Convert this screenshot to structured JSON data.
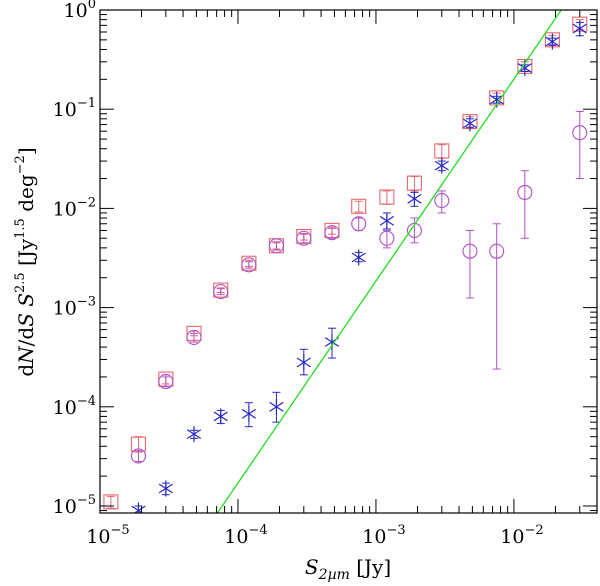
{
  "chart_data": {
    "type": "scatter",
    "title": "",
    "xlabel": "S_2µm [Jy]",
    "ylabel": "dN/dS S^2.5 [Jy^1.5 deg^-2]",
    "xscale": "log",
    "yscale": "log",
    "xlim": [
      1e-05,
      0.04
    ],
    "ylim": [
      8.5e-06,
      1.0
    ],
    "x_tick_labels": [
      "10^-5",
      "10^-4",
      "10^-3",
      "10^-2"
    ],
    "y_tick_labels": [
      "10^-5",
      "10^-4",
      "10^-3",
      "10^-2",
      "10^-1",
      "10^0"
    ],
    "colors": {
      "squares": "#e8686e",
      "circles": "#b050c8",
      "stars": "#2828c8",
      "model": "#22dd22"
    },
    "series": [
      {
        "name": "squares",
        "marker": "square",
        "x": [
          1.2e-05,
          1.9e-05,
          3e-05,
          4.8e-05,
          7.5e-05,
          0.00012,
          0.00019,
          0.0003,
          0.00048,
          0.00075,
          0.0012,
          0.0019,
          0.003,
          0.0048,
          0.0075,
          0.012,
          0.019,
          0.03
        ],
        "y": [
          1.1e-05,
          4.2e-05,
          0.00019,
          0.00055,
          0.0015,
          0.0028,
          0.0042,
          0.0052,
          0.006,
          0.0105,
          0.013,
          0.018,
          0.038,
          0.075,
          0.13,
          0.27,
          0.5,
          0.72
        ],
        "err_low": [
          9.5e-06,
          3.5e-05,
          0.00017,
          0.00052,
          0.00142,
          0.0026,
          0.0039,
          0.0048,
          0.0055,
          0.0092,
          0.011,
          0.015,
          0.032,
          0.066,
          0.115,
          0.24,
          0.45,
          0.64
        ],
        "err_high": [
          1.25e-05,
          5e-05,
          0.00021,
          0.00058,
          0.00158,
          0.003,
          0.0045,
          0.0056,
          0.0065,
          0.0118,
          0.015,
          0.021,
          0.044,
          0.084,
          0.145,
          0.3,
          0.55,
          0.8
        ]
      },
      {
        "name": "circles",
        "marker": "circle",
        "x": [
          1.9e-05,
          3e-05,
          4.8e-05,
          7.5e-05,
          0.00012,
          0.00019,
          0.0003,
          0.00048,
          0.00075,
          0.0012,
          0.0019,
          0.003,
          0.0048,
          0.0075,
          0.012,
          0.03
        ],
        "y": [
          3.2e-05,
          0.00018,
          0.0005,
          0.00145,
          0.0027,
          0.0042,
          0.005,
          0.0057,
          0.007,
          0.005,
          0.006,
          0.012,
          0.0037,
          0.0037,
          0.0145,
          0.058
        ],
        "err_low": [
          2.8e-05,
          0.00016,
          0.00045,
          0.00135,
          0.0025,
          0.0038,
          0.0045,
          0.005,
          0.006,
          0.004,
          0.0045,
          0.009,
          0.00125,
          0.00024,
          0.005,
          0.02
        ],
        "err_high": [
          3.6e-05,
          0.0002,
          0.00055,
          0.00155,
          0.0029,
          0.0046,
          0.0055,
          0.0063,
          0.008,
          0.006,
          0.008,
          0.015,
          0.006,
          0.007,
          0.024,
          0.095
        ]
      },
      {
        "name": "stars",
        "marker": "asterisk",
        "x": [
          1.9e-05,
          3e-05,
          4.8e-05,
          7.5e-05,
          0.00012,
          0.00019,
          0.0003,
          0.00048,
          0.00075,
          0.0012,
          0.0019,
          0.003,
          0.0048,
          0.0075,
          0.012,
          0.019,
          0.03
        ],
        "y": [
          9e-06,
          1.5e-05,
          5.3e-05,
          8e-05,
          8.5e-05,
          0.0001,
          0.00028,
          0.00045,
          0.0032,
          0.0075,
          0.0125,
          0.027,
          0.072,
          0.125,
          0.26,
          0.48,
          0.65
        ],
        "err_low": [
          8e-06,
          1.3e-05,
          4.8e-05,
          6.8e-05,
          6.3e-05,
          7e-05,
          0.00021,
          0.00031,
          0.0029,
          0.0062,
          0.0105,
          0.024,
          0.065,
          0.115,
          0.24,
          0.44,
          0.55
        ],
        "err_high": [
          1e-05,
          1.7e-05,
          5.8e-05,
          9.2e-05,
          0.00011,
          0.00014,
          0.00038,
          0.00062,
          0.0036,
          0.009,
          0.0145,
          0.03,
          0.08,
          0.135,
          0.28,
          0.52,
          0.75
        ]
      },
      {
        "name": "model",
        "marker": "line",
        "x": [
          7.1e-05,
          0.022
        ],
        "y": [
          8.5e-06,
          1.0
        ]
      }
    ]
  }
}
